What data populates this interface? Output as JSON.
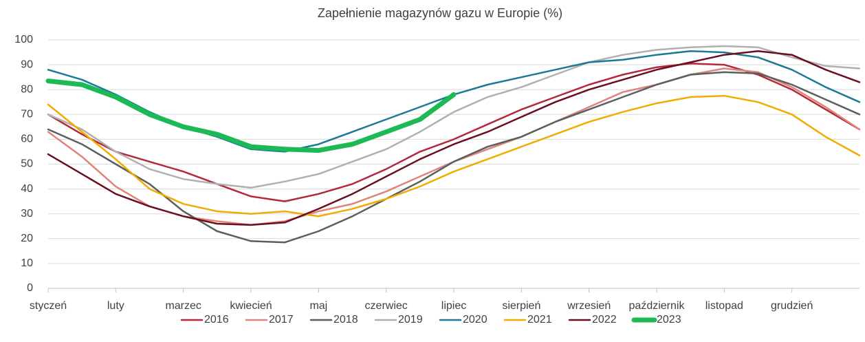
{
  "chart_data": {
    "type": "line",
    "title": "Zapełnienie magazynów gazu w Europie (%)",
    "categories": [
      "styczeń",
      null,
      "luty",
      null,
      "marzec",
      null,
      "kwiecień",
      null,
      "maj",
      null,
      "czerwiec",
      null,
      "lipiec",
      null,
      "sierpień",
      null,
      "wrzesień",
      null,
      "październik",
      null,
      "listopad",
      null,
      "grudzień",
      null,
      null
    ],
    "ylim": [
      0,
      100
    ],
    "yticks": [
      0,
      10,
      20,
      30,
      40,
      50,
      60,
      70,
      80,
      90,
      100
    ],
    "grid": true,
    "legend": "bottom",
    "series": [
      {
        "name": "2016",
        "color": "#b4283a",
        "values": [
          70,
          62,
          55,
          51,
          47,
          42,
          37,
          35,
          38,
          42,
          48,
          55,
          60,
          66,
          72,
          77,
          82,
          86,
          89,
          90.5,
          90,
          86,
          80,
          72,
          64
        ]
      },
      {
        "name": "2017",
        "color": "#e0837a",
        "values": [
          63,
          53,
          41,
          33,
          29,
          27,
          25.5,
          27,
          31,
          34,
          39,
          45,
          51,
          56,
          61,
          67,
          73,
          79,
          82,
          86,
          88.5,
          87,
          81,
          73,
          64
        ]
      },
      {
        "name": "2018",
        "color": "#5a5f5e",
        "values": [
          64,
          58,
          50,
          42,
          31,
          23,
          19,
          18.5,
          23,
          29,
          36,
          43,
          51,
          57,
          61,
          67,
          72,
          77,
          82,
          86,
          87,
          86.5,
          82,
          76,
          70
        ]
      },
      {
        "name": "2019",
        "color": "#b0b0b0",
        "values": [
          70,
          64,
          55,
          48,
          44,
          42,
          40.5,
          43,
          46,
          51,
          56,
          63,
          71,
          77,
          81,
          86,
          91,
          94,
          96,
          97,
          97.5,
          97,
          93,
          89.5,
          88.5
        ]
      },
      {
        "name": "2020",
        "color": "#1a7a96",
        "values": [
          88,
          84,
          78,
          71,
          65,
          61,
          56,
          55,
          58,
          63,
          68,
          73,
          78,
          82,
          85,
          88,
          91,
          92,
          94,
          95.5,
          95,
          93,
          88,
          81,
          75
        ]
      },
      {
        "name": "2021",
        "color": "#f2ab00",
        "values": [
          74,
          63,
          52,
          40,
          34,
          31,
          30,
          31,
          29,
          32,
          36,
          41,
          47,
          52,
          57,
          62,
          67,
          71,
          74.5,
          77,
          77.5,
          75,
          70,
          61,
          53.5
        ]
      },
      {
        "name": "2022",
        "color": "#6b0f1f",
        "values": [
          54,
          46,
          38,
          33,
          29,
          26,
          25.5,
          26.5,
          32,
          38,
          45,
          52,
          58,
          63,
          69,
          75,
          80,
          84,
          88,
          91,
          94,
          95.5,
          94,
          88,
          83
        ]
      },
      {
        "name": "2023",
        "color": "#1db954",
        "values": [
          83.5,
          82,
          77,
          70,
          65,
          62,
          57,
          56,
          55.5,
          58,
          63,
          68,
          78,
          null,
          null,
          null,
          null,
          null,
          null,
          null,
          null,
          null,
          null,
          null,
          null
        ]
      }
    ]
  }
}
